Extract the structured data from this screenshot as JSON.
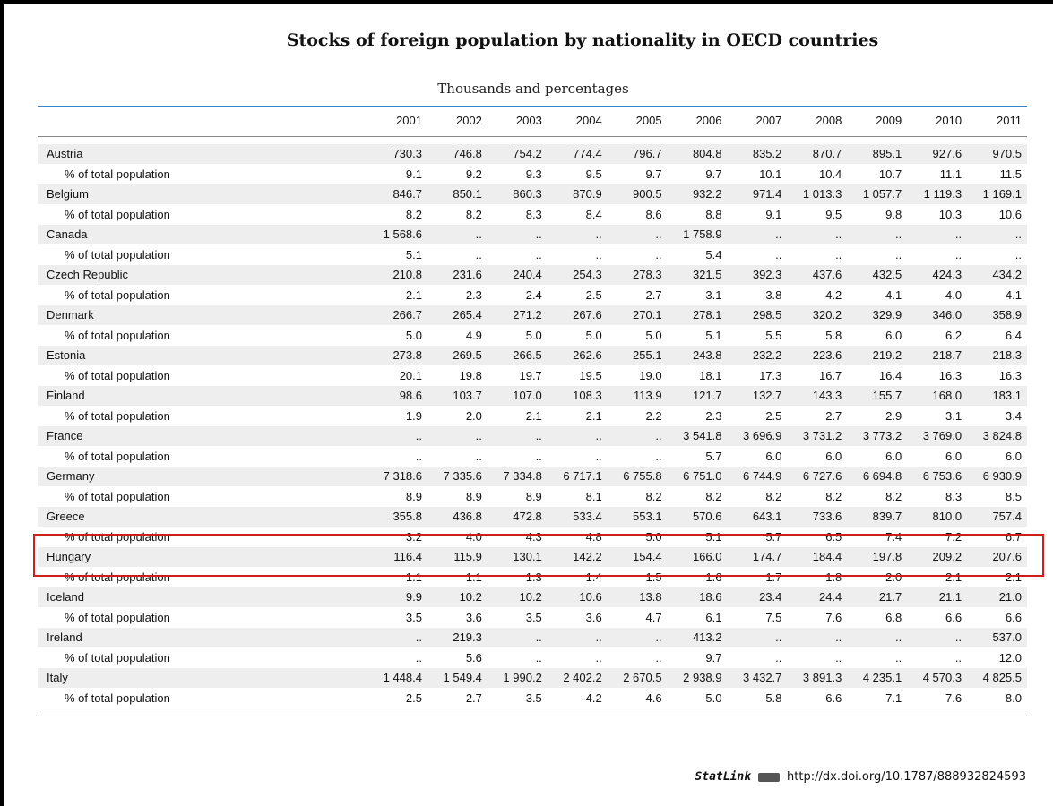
{
  "title": "Stocks of foreign population by nationality in OECD countries",
  "subtitle": "Thousands and percentages",
  "table": {
    "columns": [
      "2001",
      "2002",
      "2003",
      "2004",
      "2005",
      "2006",
      "2007",
      "2008",
      "2009",
      "2010",
      "2011"
    ],
    "rows": [
      {
        "label": "Austria",
        "cells": [
          "730.3",
          "746.8",
          "754.2",
          "774.4",
          "796.7",
          "804.8",
          "835.2",
          "870.7",
          "895.1",
          "927.6",
          "970.5"
        ]
      },
      {
        "label": "% of total population",
        "cells": [
          "9.1",
          "9.2",
          "9.3",
          "9.5",
          "9.7",
          "9.7",
          "10.1",
          "10.4",
          "10.7",
          "11.1",
          "11.5"
        ]
      },
      {
        "label": "Belgium",
        "cells": [
          "846.7",
          "850.1",
          "860.3",
          "870.9",
          "900.5",
          "932.2",
          "971.4",
          "1 013.3",
          "1 057.7",
          "1 119.3",
          "1 169.1"
        ]
      },
      {
        "label": "% of total population",
        "cells": [
          "8.2",
          "8.2",
          "8.3",
          "8.4",
          "8.6",
          "8.8",
          "9.1",
          "9.5",
          "9.8",
          "10.3",
          "10.6"
        ]
      },
      {
        "label": "Canada",
        "cells": [
          "1 568.6",
          "..",
          "..",
          "..",
          "..",
          "1 758.9",
          "..",
          "..",
          "..",
          "..",
          ".."
        ]
      },
      {
        "label": "% of total population",
        "cells": [
          "5.1",
          "..",
          "..",
          "..",
          "..",
          "5.4",
          "..",
          "..",
          "..",
          "..",
          ".."
        ]
      },
      {
        "label": "Czech Republic",
        "cells": [
          "210.8",
          "231.6",
          "240.4",
          "254.3",
          "278.3",
          "321.5",
          "392.3",
          "437.6",
          "432.5",
          "424.3",
          "434.2"
        ]
      },
      {
        "label": "% of total population",
        "cells": [
          "2.1",
          "2.3",
          "2.4",
          "2.5",
          "2.7",
          "3.1",
          "3.8",
          "4.2",
          "4.1",
          "4.0",
          "4.1"
        ]
      },
      {
        "label": "Denmark",
        "cells": [
          "266.7",
          "265.4",
          "271.2",
          "267.6",
          "270.1",
          "278.1",
          "298.5",
          "320.2",
          "329.9",
          "346.0",
          "358.9"
        ]
      },
      {
        "label": "% of total population",
        "cells": [
          "5.0",
          "4.9",
          "5.0",
          "5.0",
          "5.0",
          "5.1",
          "5.5",
          "5.8",
          "6.0",
          "6.2",
          "6.4"
        ]
      },
      {
        "label": "Estonia",
        "cells": [
          "273.8",
          "269.5",
          "266.5",
          "262.6",
          "255.1",
          "243.8",
          "232.2",
          "223.6",
          "219.2",
          "218.7",
          "218.3"
        ]
      },
      {
        "label": "% of total population",
        "cells": [
          "20.1",
          "19.8",
          "19.7",
          "19.5",
          "19.0",
          "18.1",
          "17.3",
          "16.7",
          "16.4",
          "16.3",
          "16.3"
        ]
      },
      {
        "label": "Finland",
        "cells": [
          "98.6",
          "103.7",
          "107.0",
          "108.3",
          "113.9",
          "121.7",
          "132.7",
          "143.3",
          "155.7",
          "168.0",
          "183.1"
        ]
      },
      {
        "label": "% of total population",
        "cells": [
          "1.9",
          "2.0",
          "2.1",
          "2.1",
          "2.2",
          "2.3",
          "2.5",
          "2.7",
          "2.9",
          "3.1",
          "3.4"
        ]
      },
      {
        "label": "France",
        "cells": [
          "..",
          "..",
          "..",
          "..",
          "..",
          "3 541.8",
          "3 696.9",
          "3 731.2",
          "3 773.2",
          "3 769.0",
          "3 824.8"
        ]
      },
      {
        "label": "% of total population",
        "cells": [
          "..",
          "..",
          "..",
          "..",
          "..",
          "5.7",
          "6.0",
          "6.0",
          "6.0",
          "6.0",
          "6.0"
        ]
      },
      {
        "label": "Germany",
        "cells": [
          "7 318.6",
          "7 335.6",
          "7 334.8",
          "6 717.1",
          "6 755.8",
          "6 751.0",
          "6 744.9",
          "6 727.6",
          "6 694.8",
          "6 753.6",
          "6 930.9"
        ]
      },
      {
        "label": "% of total population",
        "cells": [
          "8.9",
          "8.9",
          "8.9",
          "8.1",
          "8.2",
          "8.2",
          "8.2",
          "8.2",
          "8.2",
          "8.3",
          "8.5"
        ]
      },
      {
        "label": "Greece",
        "cells": [
          "355.8",
          "436.8",
          "472.8",
          "533.4",
          "553.1",
          "570.6",
          "643.1",
          "733.6",
          "839.7",
          "810.0",
          "757.4"
        ]
      },
      {
        "label": "% of total population",
        "cells": [
          "3.2",
          "4.0",
          "4.3",
          "4.8",
          "5.0",
          "5.1",
          "5.7",
          "6.5",
          "7.4",
          "7.2",
          "6.7"
        ]
      },
      {
        "label": "Hungary",
        "cells": [
          "116.4",
          "115.9",
          "130.1",
          "142.2",
          "154.4",
          "166.0",
          "174.7",
          "184.4",
          "197.8",
          "209.2",
          "207.6"
        ]
      },
      {
        "label": "% of total population",
        "cells": [
          "1.1",
          "1.1",
          "1.3",
          "1.4",
          "1.5",
          "1.6",
          "1.7",
          "1.8",
          "2.0",
          "2.1",
          "2.1"
        ]
      },
      {
        "label": "Iceland",
        "cells": [
          "9.9",
          "10.2",
          "10.2",
          "10.6",
          "13.8",
          "18.6",
          "23.4",
          "24.4",
          "21.7",
          "21.1",
          "21.0"
        ]
      },
      {
        "label": "% of total population",
        "cells": [
          "3.5",
          "3.6",
          "3.5",
          "3.6",
          "4.7",
          "6.1",
          "7.5",
          "7.6",
          "6.8",
          "6.6",
          "6.6"
        ]
      },
      {
        "label": "Ireland",
        "cells": [
          "..",
          "219.3",
          "..",
          "..",
          "..",
          "413.2",
          "..",
          "..",
          "..",
          "..",
          "537.0"
        ]
      },
      {
        "label": "% of total population",
        "cells": [
          "..",
          "5.6",
          "..",
          "..",
          "..",
          "9.7",
          "..",
          "..",
          "..",
          "..",
          "12.0"
        ]
      },
      {
        "label": "Italy",
        "cells": [
          "1 448.4",
          "1 549.4",
          "1 990.2",
          "2 402.2",
          "2 670.5",
          "2 938.9",
          "3 432.7",
          "3 891.3",
          "4 235.1",
          "4 570.3",
          "4 825.5"
        ]
      },
      {
        "label": "% of total population",
        "cells": [
          "2.5",
          "2.7",
          "3.5",
          "4.2",
          "4.6",
          "5.0",
          "5.8",
          "6.6",
          "7.1",
          "7.6",
          "8.0"
        ]
      }
    ]
  },
  "statlink": {
    "label": "StatLink",
    "url": "http://dx.doi.org/10.1787/888932824593"
  }
}
